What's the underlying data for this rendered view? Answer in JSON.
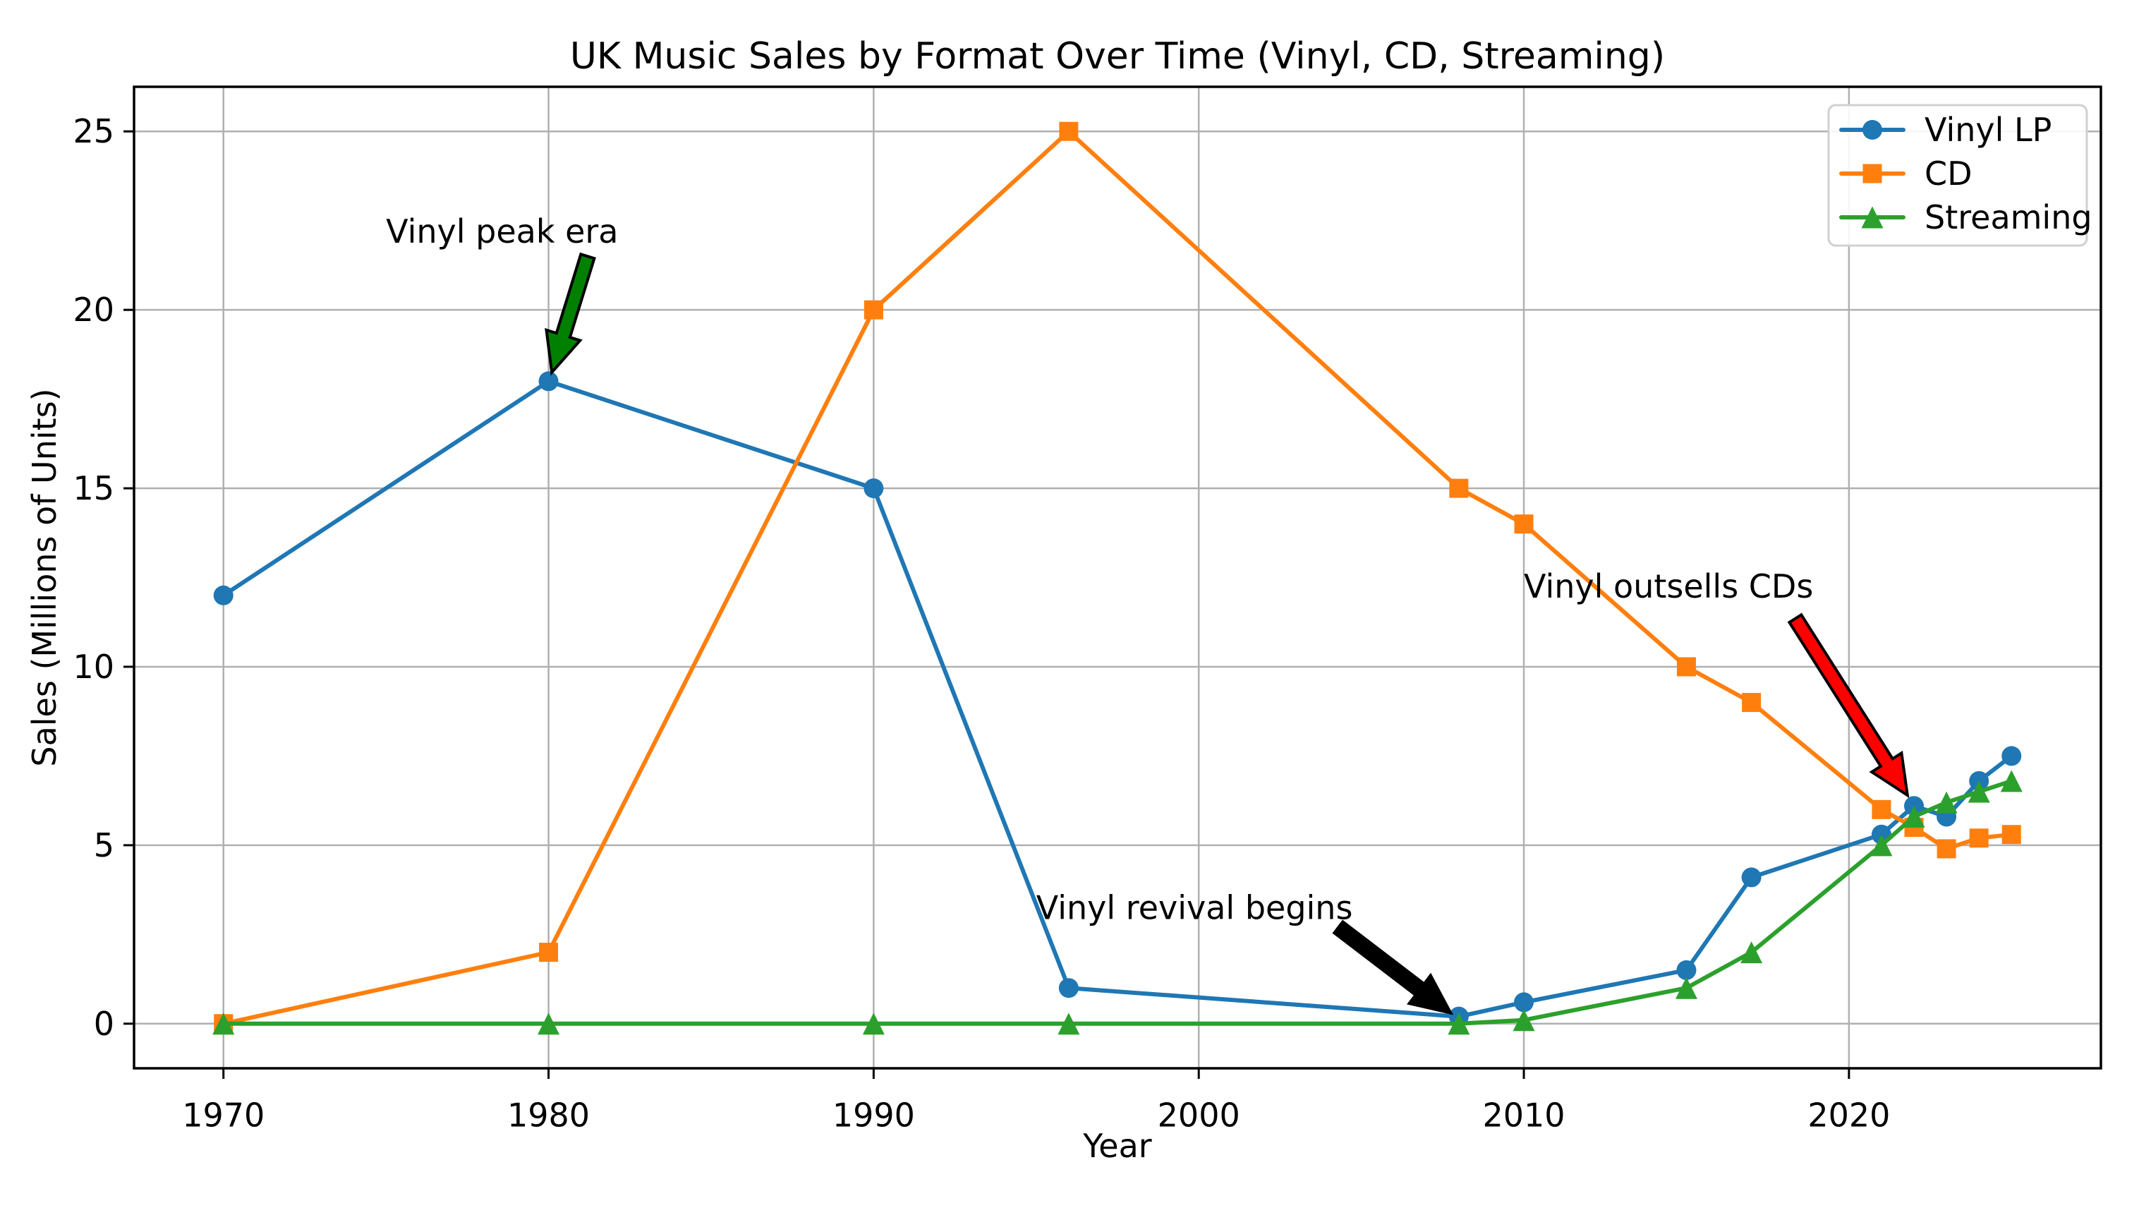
{
  "figure": {
    "title": "UK Music Sales by Format Over Time (Vinyl, CD, Streaming)",
    "background_color": "#ffffff"
  },
  "chart_data": {
    "type": "line",
    "title": "UK Music Sales by Format Over Time (Vinyl, CD, Streaming)",
    "xlabel": "Year",
    "ylabel": "Sales (Millions of Units)",
    "x": [
      1970,
      1980,
      1990,
      1996,
      2008,
      2010,
      2015,
      2017,
      2021,
      2022,
      2023,
      2024,
      2025
    ],
    "series": [
      {
        "name": "Vinyl LP",
        "color": "#1f77b4",
        "marker": "circle",
        "values": [
          12,
          18,
          15,
          1,
          0.2,
          0.6,
          1.5,
          4.1,
          5.3,
          6.1,
          5.8,
          6.8,
          7.5
        ]
      },
      {
        "name": "CD",
        "color": "#ff7f0e",
        "marker": "square",
        "values": [
          0,
          2,
          20,
          25,
          15,
          14,
          10,
          9,
          6,
          5.5,
          4.9,
          5.2,
          5.3
        ]
      },
      {
        "name": "Streaming",
        "color": "#2ca02c",
        "marker": "triangle",
        "values": [
          0,
          0,
          0,
          0,
          0,
          0.1,
          1,
          2,
          5,
          5.8,
          6.2,
          6.5,
          6.8
        ]
      }
    ],
    "xticks": [
      1970,
      1980,
      1990,
      2000,
      2010,
      2020
    ],
    "yticks": [
      0,
      5,
      10,
      15,
      20,
      25
    ],
    "xlim": [
      1967.25,
      2027.75
    ],
    "ylim": [
      -1.25,
      26.25
    ],
    "grid": true,
    "grid_color": "#b0b0b0",
    "legend_position": "upper right",
    "legend_entries": [
      "Vinyl LP",
      "CD",
      "Streaming"
    ],
    "annotations": [
      {
        "text": "Vinyl peak era",
        "color": "#008000",
        "arrow_color": "#008000",
        "text_x": 1975.0,
        "text_y": 22.2,
        "arrow_tail_x": 1981.2,
        "arrow_tail_y": 21.5,
        "arrow_tip_x": 1980.1,
        "arrow_tip_y": 18.25
      },
      {
        "text": "Vinyl revival begins",
        "color": "#000000",
        "arrow_color": "#000000",
        "text_x": 1995.0,
        "text_y": 3.25,
        "arrow_tail_x": 2004.3,
        "arrow_tail_y": 2.7,
        "arrow_tip_x": 2007.75,
        "arrow_tip_y": 0.3
      },
      {
        "text": "Vinyl outsells CDs",
        "color": "#ff0000",
        "arrow_color": "#ff0000",
        "text_x": 2010.0,
        "text_y": 12.25,
        "arrow_tail_x": 2018.35,
        "arrow_tail_y": 11.35,
        "arrow_tip_x": 2021.8,
        "arrow_tip_y": 6.4
      }
    ]
  }
}
